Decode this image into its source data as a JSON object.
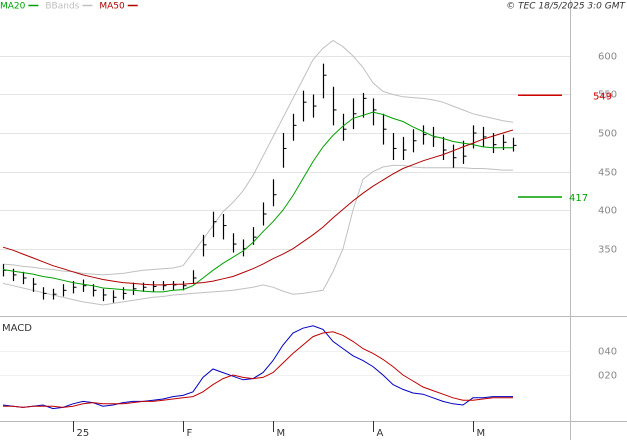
{
  "chart_data": [
    {
      "type": "ohlc",
      "legend": "top-left",
      "copyright": "© TEC 18/5/2025 3:0 GMT",
      "grid": true,
      "color": "#000000",
      "categories": [
        null,
        null,
        null,
        null,
        null,
        null,
        null,
        "25",
        null,
        null,
        null,
        null,
        null,
        null,
        null,
        null,
        null,
        null,
        "F",
        null,
        null,
        null,
        null,
        null,
        null,
        null,
        null,
        "M",
        null,
        null,
        null,
        null,
        null,
        null,
        null,
        null,
        null,
        "A",
        null,
        null,
        null,
        null,
        null,
        null,
        null,
        null,
        null,
        "M",
        null,
        null,
        null,
        null
      ],
      "high": [
        330,
        324,
        320,
        312,
        300,
        298,
        304,
        308,
        310,
        304,
        298,
        296,
        300,
        306,
        306,
        308,
        308,
        308,
        308,
        322,
        368,
        398,
        395,
        370,
        362,
        378,
        410,
        440,
        500,
        525,
        555,
        550,
        590,
        560,
        525,
        545,
        552,
        545,
        525,
        500,
        495,
        505,
        510,
        508,
        495,
        485,
        490,
        510,
        508,
        500,
        498,
        494
      ],
      "low": [
        314,
        308,
        304,
        294,
        284,
        284,
        288,
        292,
        294,
        288,
        282,
        280,
        284,
        290,
        294,
        294,
        296,
        296,
        296,
        304,
        340,
        365,
        362,
        345,
        340,
        355,
        380,
        405,
        455,
        490,
        515,
        520,
        545,
        510,
        490,
        505,
        520,
        510,
        485,
        465,
        465,
        475,
        485,
        482,
        465,
        455,
        460,
        480,
        482,
        474,
        478,
        476
      ],
      "close": [
        322,
        316,
        312,
        304,
        292,
        291,
        296,
        300,
        302,
        296,
        290,
        287,
        292,
        298,
        300,
        301,
        302,
        303,
        302,
        312,
        355,
        385,
        380,
        356,
        350,
        365,
        395,
        420,
        480,
        510,
        540,
        535,
        575,
        530,
        505,
        525,
        545,
        530,
        505,
        480,
        478,
        490,
        498,
        495,
        478,
        468,
        470,
        500,
        495,
        485,
        488,
        484
      ],
      "series": [
        {
          "name": "MA20",
          "color": "#00a000",
          "values": [
            323,
            321,
            319,
            317,
            314,
            312,
            309,
            306,
            304,
            302,
            299,
            298,
            297,
            296,
            295,
            294,
            294,
            296,
            297,
            302,
            312,
            322,
            331,
            339,
            347,
            358,
            372,
            385,
            400,
            419,
            441,
            463,
            482,
            497,
            509,
            519,
            523,
            527,
            524,
            519,
            515,
            508,
            502,
            496,
            493,
            489,
            487,
            485,
            482,
            481,
            481,
            481
          ]
        },
        {
          "name": "BBands",
          "color": "#c0c0c0",
          "upper": [
            330,
            329,
            327,
            326,
            324,
            323,
            321,
            320,
            318,
            317,
            316,
            317,
            318,
            320,
            322,
            323,
            324,
            325,
            328,
            345,
            362,
            380,
            398,
            410,
            425,
            445,
            470,
            495,
            520,
            545,
            570,
            595,
            610,
            620,
            612,
            600,
            585,
            565,
            554,
            550,
            547,
            546,
            545,
            543,
            540,
            535,
            530,
            525,
            522,
            519,
            516,
            514
          ],
          "lower": [
            305,
            302,
            299,
            296,
            293,
            290,
            287,
            284,
            281,
            279,
            277,
            279,
            281,
            283,
            285,
            287,
            288,
            290,
            291,
            292,
            293,
            294,
            295,
            296,
            298,
            300,
            303,
            300,
            295,
            291,
            292,
            294,
            296,
            320,
            350,
            400,
            440,
            450,
            456,
            458,
            458,
            456,
            455,
            455,
            455,
            455,
            455,
            454,
            454,
            453,
            452,
            452
          ]
        },
        {
          "name": "MA50",
          "color": "#b00000",
          "values": [
            352,
            348,
            343,
            338,
            333,
            328,
            324,
            320,
            316,
            313,
            310,
            308,
            306,
            305,
            304,
            303,
            303,
            304,
            304,
            305,
            306,
            308,
            311,
            314,
            319,
            324,
            330,
            337,
            343,
            350,
            359,
            368,
            378,
            390,
            401,
            412,
            422,
            431,
            439,
            447,
            454,
            459,
            464,
            468,
            472,
            477,
            482,
            487,
            492,
            496,
            500,
            504
          ]
        }
      ],
      "levels": [
        {
          "value": 549,
          "color": "#d00000"
        },
        {
          "value": 417,
          "color": "#00a000"
        }
      ],
      "ylim": [
        264,
        657
      ],
      "yticks": [
        350,
        400,
        450,
        500,
        550,
        600
      ]
    },
    {
      "type": "line",
      "title": "MACD",
      "grid": true,
      "series": [
        {
          "color": "#0000c0",
          "values": [
            -5,
            -6,
            -7,
            -6,
            -5,
            -8,
            -7,
            -4,
            -2,
            -3,
            -6,
            -5,
            -3,
            -2,
            -2,
            -1,
            0,
            2,
            3,
            6,
            18,
            25,
            22,
            19,
            16,
            17,
            22,
            32,
            45,
            55,
            59,
            61,
            58,
            48,
            42,
            36,
            32,
            27,
            20,
            12,
            8,
            5,
            4,
            1,
            -2,
            -4,
            -5,
            1,
            1,
            2,
            2,
            2
          ]
        },
        {
          "color": "#c00000",
          "values": [
            -6,
            -6,
            -7,
            -6,
            -6,
            -6,
            -7,
            -6,
            -4,
            -3,
            -4,
            -4,
            -4,
            -3,
            -2,
            -2,
            -1,
            0,
            1,
            2,
            6,
            12,
            17,
            20,
            18,
            17,
            18,
            22,
            30,
            38,
            45,
            52,
            55,
            56,
            53,
            48,
            42,
            38,
            33,
            27,
            20,
            15,
            10,
            7,
            4,
            1,
            -1,
            -1,
            0,
            1,
            1,
            1
          ]
        }
      ],
      "ylim": [
        -17.5,
        67.5
      ],
      "yticks": [
        {
          "value": 20,
          "label": "020"
        },
        {
          "value": 40,
          "label": "040"
        }
      ]
    }
  ]
}
